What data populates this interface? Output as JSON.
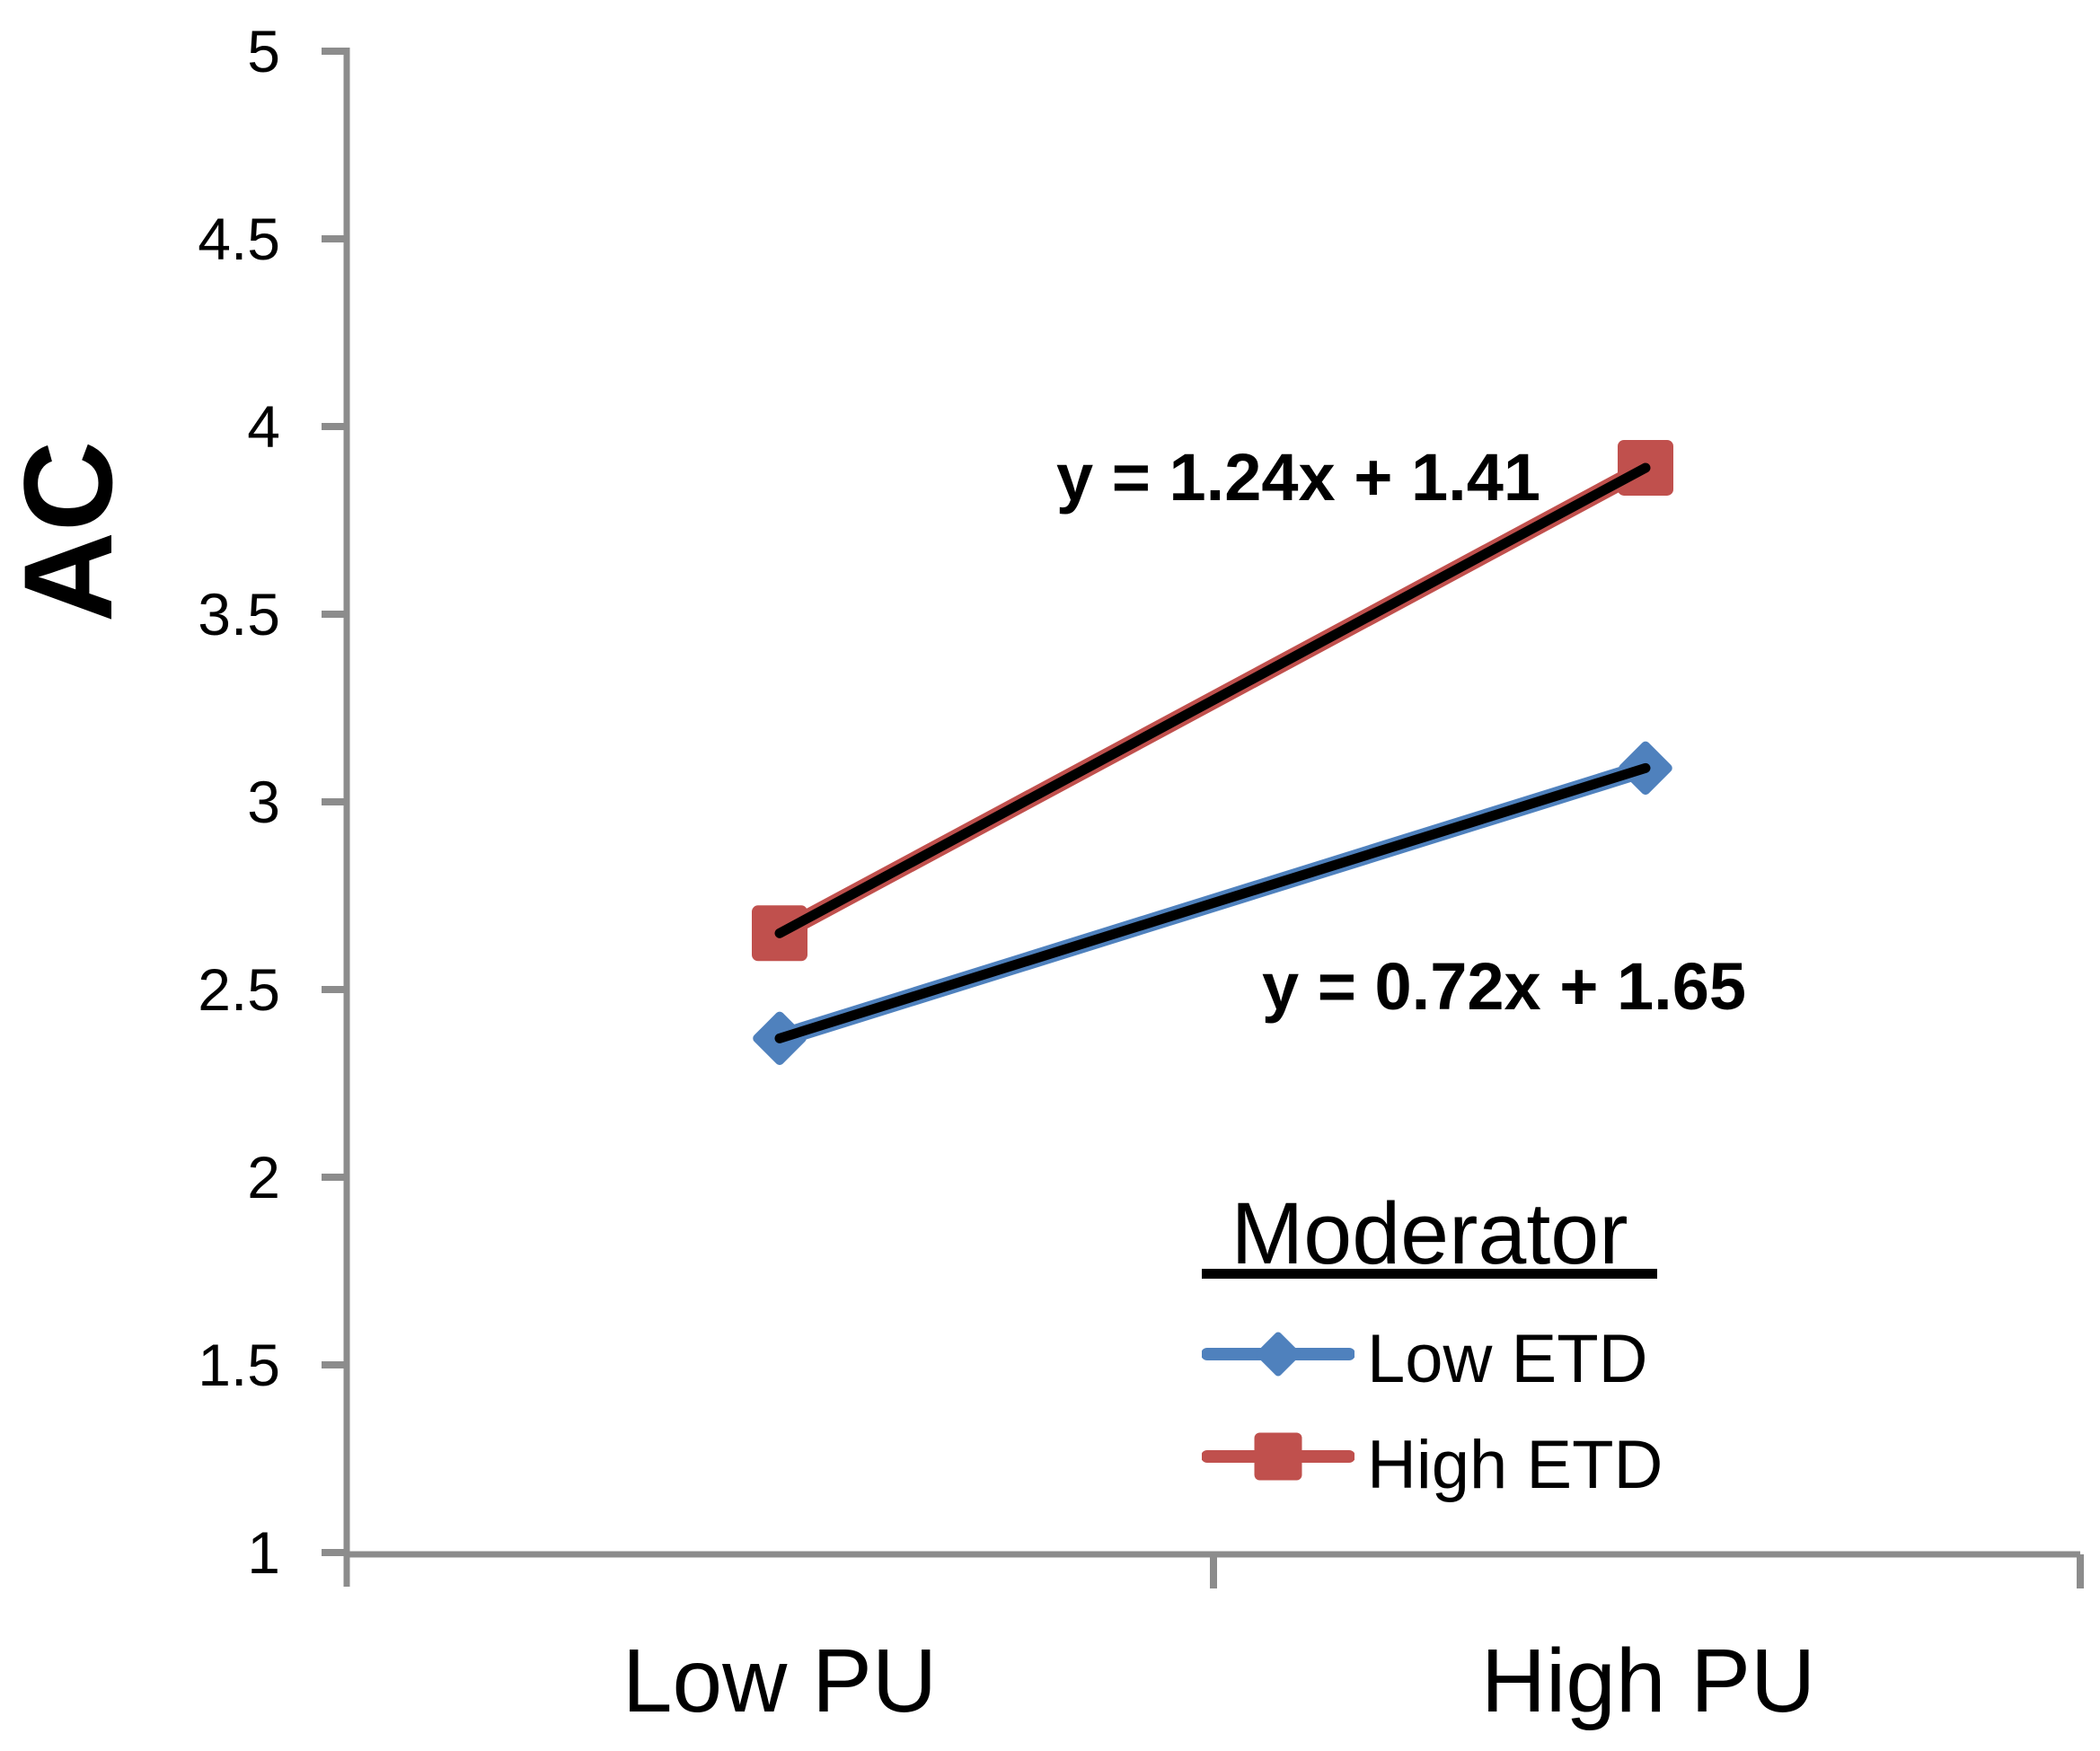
{
  "chart_data": {
    "type": "line",
    "categories": [
      "Low PU",
      "High PU"
    ],
    "series": [
      {
        "name": "Low ETD",
        "color": "#4F81BD",
        "marker": "diamond",
        "values": [
          2.37,
          3.09
        ],
        "trendline": {
          "label": "y = 0.72x + 1.65",
          "slope": 0.72,
          "intercept": 1.65,
          "color": "#000000"
        }
      },
      {
        "name": "High ETD",
        "color": "#C0504D",
        "marker": "square",
        "values": [
          2.65,
          3.89
        ],
        "trendline": {
          "label": "y = 1.24x + 1.41",
          "slope": 1.24,
          "intercept": 1.41,
          "color": "#000000"
        }
      }
    ],
    "xlabel": "",
    "ylabel": "AC",
    "ylim": [
      1,
      5
    ],
    "yticks": [
      5,
      4.5,
      4,
      3.5,
      3,
      2.5,
      2,
      1.5,
      1
    ],
    "grid": false,
    "axis_color": "#8C8C8C",
    "legend": {
      "title": "Moderator",
      "position": "inside-bottom-right"
    }
  }
}
